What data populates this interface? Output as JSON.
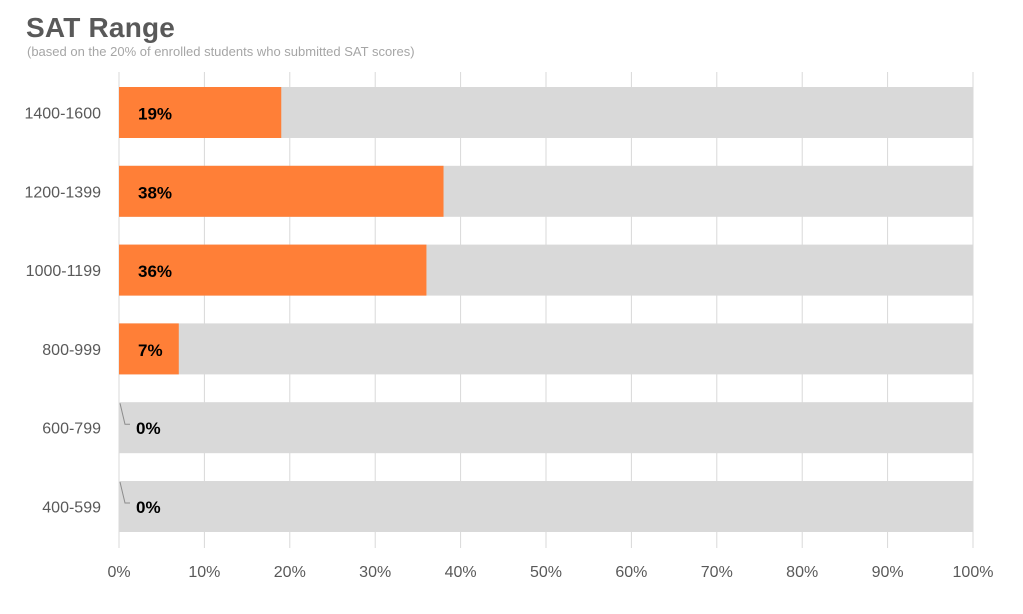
{
  "header": {
    "title": "SAT Range",
    "subtitle": "(based on the 20% of enrolled students who submitted SAT scores)"
  },
  "colors": {
    "bar": "#FF7F37",
    "track": "#D9D9D9",
    "grid": "#D9D9D9",
    "leader": "#8C8C8C"
  },
  "chart_data": {
    "type": "bar",
    "orientation": "horizontal",
    "title": "SAT Range",
    "subtitle": "(based on the 20% of enrolled students who submitted SAT scores)",
    "categories": [
      "1400-1600",
      "1200-1399",
      "1000-1199",
      "800-999",
      "600-799",
      "400-599"
    ],
    "values": [
      19,
      38,
      36,
      7,
      0,
      0
    ],
    "data_labels": [
      "19%",
      "38%",
      "36%",
      "7%",
      "0%",
      "0%"
    ],
    "xlim": [
      0,
      100
    ],
    "x_ticks": [
      0,
      10,
      20,
      30,
      40,
      50,
      60,
      70,
      80,
      90,
      100
    ],
    "x_tick_labels": [
      "0%",
      "10%",
      "20%",
      "30%",
      "40%",
      "50%",
      "60%",
      "70%",
      "80%",
      "90%",
      "100%"
    ],
    "background_track": 100,
    "grid": true,
    "legend": false,
    "xlabel": "",
    "ylabel": ""
  }
}
